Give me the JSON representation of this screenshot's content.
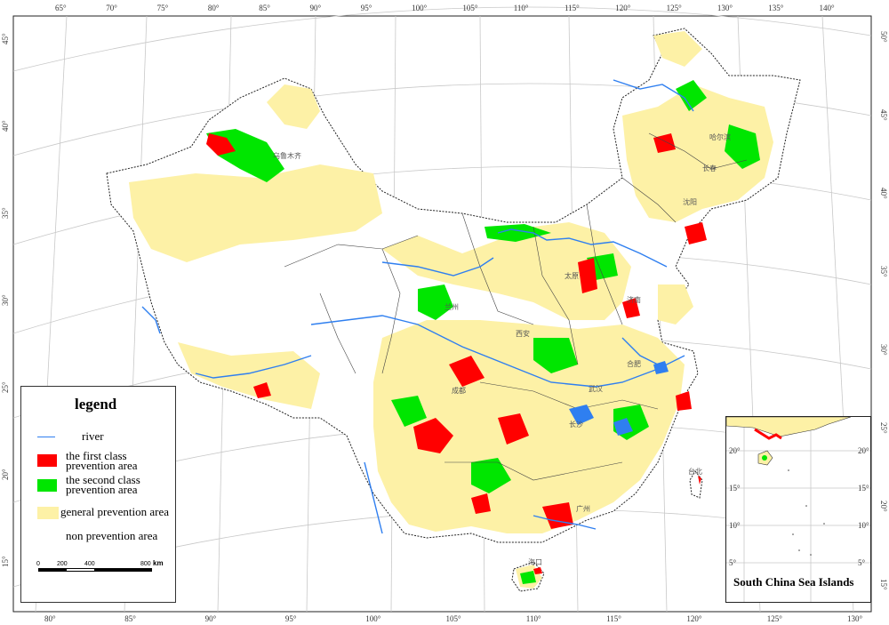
{
  "map": {
    "longitude_top_labels": [
      "65°",
      "70°",
      "75°",
      "80°",
      "85°",
      "90°",
      "95°",
      "100°",
      "105°",
      "110°",
      "115°",
      "120°",
      "125°",
      "130°",
      "135°",
      "140°"
    ],
    "longitude_bottom_labels": [
      "80°",
      "85°",
      "90°",
      "95°",
      "100°",
      "105°",
      "110°",
      "115°",
      "120°",
      "125°",
      "130°"
    ],
    "latitude_left_labels": [
      "45°",
      "40°",
      "35°",
      "30°",
      "25°",
      "20°",
      "15°"
    ],
    "latitude_right_labels": [
      "50°",
      "45°",
      "40°",
      "35°",
      "30°",
      "25°",
      "20°",
      "15°"
    ],
    "city_labels": [
      "乌鲁木齐",
      "哈尔滨",
      "长春",
      "沈阳",
      "兰州",
      "太原",
      "济南",
      "西安",
      "成都",
      "合肥",
      "武汉",
      "长沙",
      "广州",
      "台北",
      "海口"
    ],
    "colors": {
      "river": "#2f7ff0",
      "first_class": "#ff0000",
      "second_class": "#00e600",
      "general": "#fdf1a6",
      "non": "#ffffff"
    }
  },
  "legend": {
    "title": "legend",
    "river": "river",
    "first_class_line1": "the first class",
    "first_class_line2": "prevention area",
    "second_class_line1": "the second class",
    "second_class_line2": "prevention area",
    "general": "general prevention area",
    "non": "non prevention area",
    "scale_labels": [
      "0",
      "200",
      "400",
      "800"
    ],
    "scale_unit": "km"
  },
  "inset": {
    "title": "South China Sea Islands",
    "lat_labels": [
      "20°",
      "15°",
      "10°",
      "5°"
    ],
    "lat_labels_right": [
      "20°",
      "15°",
      "10°",
      "5°"
    ]
  }
}
